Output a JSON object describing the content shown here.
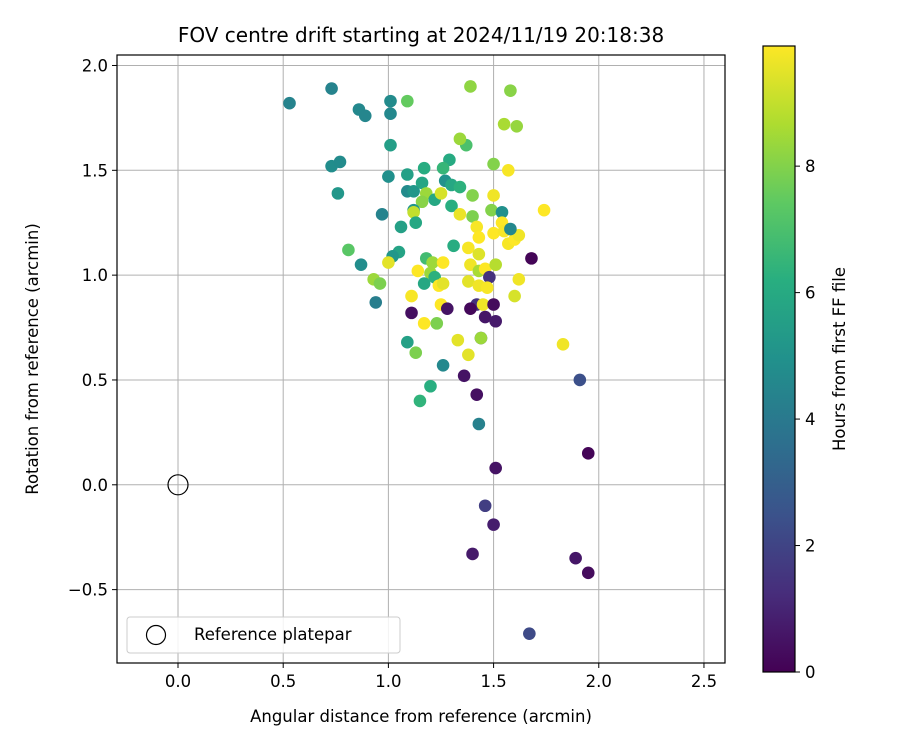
{
  "chart_data": {
    "type": "scatter",
    "title": "FOV centre drift starting at 2024/11/19 20:18:38",
    "xlabel": "Angular distance from reference (arcmin)",
    "ylabel": "Rotation from reference (arcmin)",
    "xlim": [
      -0.29,
      2.6
    ],
    "ylim": [
      -0.85,
      2.05
    ],
    "xticks": [
      0.0,
      0.5,
      1.0,
      1.5,
      2.0,
      2.5
    ],
    "xtick_labels": [
      "0.0",
      "0.5",
      "1.0",
      "1.5",
      "2.0",
      "2.5"
    ],
    "yticks": [
      -0.5,
      0.0,
      0.5,
      1.0,
      1.5,
      2.0
    ],
    "ytick_labels": [
      "−0.5",
      "0.0",
      "0.5",
      "1.0",
      "1.5",
      "2.0"
    ],
    "grid": true,
    "colorbar": {
      "label": "Hours from first FF file",
      "colormap": "viridis",
      "range": [
        0,
        9.9
      ],
      "ticks": [
        0,
        2,
        4,
        6,
        8
      ],
      "tick_labels": [
        "0",
        "2",
        "4",
        "6",
        "8"
      ]
    },
    "legend": {
      "position": "lower-left",
      "entries": [
        "Reference platepar"
      ]
    },
    "reference_point": {
      "x": 0.0,
      "y": 0.0
    },
    "points": [
      {
        "x": 0.53,
        "y": 1.82,
        "h": 4.4
      },
      {
        "x": 0.73,
        "y": 1.89,
        "h": 4.4
      },
      {
        "x": 0.86,
        "y": 1.79,
        "h": 4.6
      },
      {
        "x": 0.89,
        "y": 1.76,
        "h": 4.5
      },
      {
        "x": 1.01,
        "y": 1.83,
        "h": 4.7
      },
      {
        "x": 1.01,
        "y": 1.77,
        "h": 4.6
      },
      {
        "x": 1.09,
        "y": 1.83,
        "h": 7.5
      },
      {
        "x": 1.01,
        "y": 1.62,
        "h": 5.5
      },
      {
        "x": 0.73,
        "y": 1.52,
        "h": 4.8
      },
      {
        "x": 0.77,
        "y": 1.54,
        "h": 4.7
      },
      {
        "x": 1.0,
        "y": 1.47,
        "h": 4.9
      },
      {
        "x": 1.09,
        "y": 1.48,
        "h": 5.6
      },
      {
        "x": 1.17,
        "y": 1.51,
        "h": 6.1
      },
      {
        "x": 1.29,
        "y": 1.55,
        "h": 6.0
      },
      {
        "x": 1.37,
        "y": 1.62,
        "h": 7.0
      },
      {
        "x": 1.34,
        "y": 1.65,
        "h": 8.4
      },
      {
        "x": 1.39,
        "y": 1.9,
        "h": 8.2
      },
      {
        "x": 1.58,
        "y": 1.88,
        "h": 8.1
      },
      {
        "x": 1.55,
        "y": 1.72,
        "h": 8.6
      },
      {
        "x": 1.61,
        "y": 1.71,
        "h": 8.3
      },
      {
        "x": 1.5,
        "y": 1.53,
        "h": 8.0
      },
      {
        "x": 1.57,
        "y": 1.5,
        "h": 9.8
      },
      {
        "x": 0.76,
        "y": 1.39,
        "h": 5.2
      },
      {
        "x": 0.97,
        "y": 1.29,
        "h": 4.4
      },
      {
        "x": 1.09,
        "y": 1.4,
        "h": 4.7
      },
      {
        "x": 1.12,
        "y": 1.4,
        "h": 5.2
      },
      {
        "x": 1.16,
        "y": 1.44,
        "h": 5.8
      },
      {
        "x": 1.18,
        "y": 1.39,
        "h": 8.4
      },
      {
        "x": 1.22,
        "y": 1.36,
        "h": 5.9
      },
      {
        "x": 1.26,
        "y": 1.51,
        "h": 6.5
      },
      {
        "x": 1.27,
        "y": 1.45,
        "h": 5.0
      },
      {
        "x": 1.3,
        "y": 1.43,
        "h": 5.9
      },
      {
        "x": 1.3,
        "y": 1.33,
        "h": 6.2
      },
      {
        "x": 1.34,
        "y": 1.42,
        "h": 6.3
      },
      {
        "x": 1.4,
        "y": 1.38,
        "h": 8.0
      },
      {
        "x": 1.25,
        "y": 1.39,
        "h": 9.3
      },
      {
        "x": 1.16,
        "y": 1.35,
        "h": 8.1
      },
      {
        "x": 1.12,
        "y": 1.31,
        "h": 5.1
      },
      {
        "x": 1.12,
        "y": 1.3,
        "h": 9.0
      },
      {
        "x": 1.13,
        "y": 1.25,
        "h": 5.9
      },
      {
        "x": 1.06,
        "y": 1.23,
        "h": 5.6
      },
      {
        "x": 1.4,
        "y": 1.28,
        "h": 7.9
      },
      {
        "x": 1.34,
        "y": 1.29,
        "h": 9.6
      },
      {
        "x": 1.49,
        "y": 1.31,
        "h": 8.0
      },
      {
        "x": 1.54,
        "y": 1.3,
        "h": 4.9
      },
      {
        "x": 1.5,
        "y": 1.38,
        "h": 9.7
      },
      {
        "x": 1.74,
        "y": 1.31,
        "h": 9.9
      },
      {
        "x": 1.54,
        "y": 1.25,
        "h": 9.9
      },
      {
        "x": 1.42,
        "y": 1.23,
        "h": 9.8
      },
      {
        "x": 1.43,
        "y": 1.18,
        "h": 9.9
      },
      {
        "x": 1.5,
        "y": 1.2,
        "h": 9.9
      },
      {
        "x": 1.55,
        "y": 1.21,
        "h": 9.8
      },
      {
        "x": 1.57,
        "y": 1.15,
        "h": 9.8
      },
      {
        "x": 1.6,
        "y": 1.17,
        "h": 9.9
      },
      {
        "x": 1.62,
        "y": 1.19,
        "h": 9.7
      },
      {
        "x": 1.58,
        "y": 1.22,
        "h": 4.6
      },
      {
        "x": 1.38,
        "y": 1.13,
        "h": 9.8
      },
      {
        "x": 1.31,
        "y": 1.14,
        "h": 6.1
      },
      {
        "x": 1.43,
        "y": 1.1,
        "h": 9.4
      },
      {
        "x": 1.05,
        "y": 1.11,
        "h": 5.7
      },
      {
        "x": 1.02,
        "y": 1.09,
        "h": 5.2
      },
      {
        "x": 1.0,
        "y": 1.06,
        "h": 9.5
      },
      {
        "x": 0.81,
        "y": 1.12,
        "h": 7.3
      },
      {
        "x": 0.87,
        "y": 1.05,
        "h": 4.8
      },
      {
        "x": 1.18,
        "y": 1.08,
        "h": 6.8
      },
      {
        "x": 1.21,
        "y": 1.06,
        "h": 8.4
      },
      {
        "x": 1.26,
        "y": 1.06,
        "h": 9.9
      },
      {
        "x": 1.39,
        "y": 1.05,
        "h": 9.7
      },
      {
        "x": 1.43,
        "y": 1.02,
        "h": 8.6
      },
      {
        "x": 1.46,
        "y": 1.03,
        "h": 9.9
      },
      {
        "x": 1.51,
        "y": 1.05,
        "h": 8.8
      },
      {
        "x": 1.62,
        "y": 0.98,
        "h": 9.7
      },
      {
        "x": 1.68,
        "y": 1.08,
        "h": 0.1
      },
      {
        "x": 1.48,
        "y": 0.99,
        "h": 1.4
      },
      {
        "x": 1.14,
        "y": 1.02,
        "h": 9.9
      },
      {
        "x": 1.2,
        "y": 1.01,
        "h": 8.4
      },
      {
        "x": 1.22,
        "y": 0.99,
        "h": 6.3
      },
      {
        "x": 0.93,
        "y": 0.98,
        "h": 8.4
      },
      {
        "x": 0.96,
        "y": 0.96,
        "h": 7.9
      },
      {
        "x": 1.17,
        "y": 0.96,
        "h": 5.9
      },
      {
        "x": 1.24,
        "y": 0.95,
        "h": 9.9
      },
      {
        "x": 1.26,
        "y": 0.96,
        "h": 9.5
      },
      {
        "x": 1.38,
        "y": 0.97,
        "h": 9.5
      },
      {
        "x": 1.43,
        "y": 0.95,
        "h": 9.7
      },
      {
        "x": 1.47,
        "y": 0.94,
        "h": 9.8
      },
      {
        "x": 1.11,
        "y": 0.9,
        "h": 9.8
      },
      {
        "x": 1.6,
        "y": 0.9,
        "h": 9.3
      },
      {
        "x": 0.94,
        "y": 0.87,
        "h": 4.2
      },
      {
        "x": 1.25,
        "y": 0.86,
        "h": 9.9
      },
      {
        "x": 1.42,
        "y": 0.86,
        "h": 1.4
      },
      {
        "x": 1.45,
        "y": 0.86,
        "h": 9.7
      },
      {
        "x": 1.5,
        "y": 0.86,
        "h": 0.3
      },
      {
        "x": 1.11,
        "y": 0.82,
        "h": 0.4
      },
      {
        "x": 1.28,
        "y": 0.84,
        "h": 0.5
      },
      {
        "x": 1.39,
        "y": 0.84,
        "h": 0.2
      },
      {
        "x": 1.46,
        "y": 0.8,
        "h": 0.6
      },
      {
        "x": 1.51,
        "y": 0.78,
        "h": 0.7
      },
      {
        "x": 1.17,
        "y": 0.77,
        "h": 9.9
      },
      {
        "x": 1.23,
        "y": 0.77,
        "h": 7.9
      },
      {
        "x": 1.44,
        "y": 0.7,
        "h": 2.1
      },
      {
        "x": 1.44,
        "y": 0.7,
        "h": 8.4
      },
      {
        "x": 1.09,
        "y": 0.68,
        "h": 5.6
      },
      {
        "x": 1.13,
        "y": 0.63,
        "h": 7.9
      },
      {
        "x": 1.33,
        "y": 0.69,
        "h": 9.5
      },
      {
        "x": 1.38,
        "y": 0.62,
        "h": 9.5
      },
      {
        "x": 1.83,
        "y": 0.67,
        "h": 9.7
      },
      {
        "x": 1.26,
        "y": 0.57,
        "h": 4.6
      },
      {
        "x": 1.36,
        "y": 0.52,
        "h": 0.5
      },
      {
        "x": 1.91,
        "y": 0.5,
        "h": 2.4
      },
      {
        "x": 1.2,
        "y": 0.47,
        "h": 6.2
      },
      {
        "x": 1.15,
        "y": 0.4,
        "h": 6.4
      },
      {
        "x": 1.42,
        "y": 0.43,
        "h": 0.4
      },
      {
        "x": 1.43,
        "y": 0.29,
        "h": 4.3
      },
      {
        "x": 1.51,
        "y": 0.08,
        "h": 0.5
      },
      {
        "x": 1.95,
        "y": 0.15,
        "h": 0.1
      },
      {
        "x": 1.46,
        "y": -0.1,
        "h": 1.8
      },
      {
        "x": 1.5,
        "y": -0.19,
        "h": 0.8
      },
      {
        "x": 1.4,
        "y": -0.33,
        "h": 0.7
      },
      {
        "x": 1.89,
        "y": -0.35,
        "h": 0.6
      },
      {
        "x": 1.95,
        "y": -0.42,
        "h": 0.3
      },
      {
        "x": 1.67,
        "y": -0.71,
        "h": 2.2
      }
    ]
  }
}
